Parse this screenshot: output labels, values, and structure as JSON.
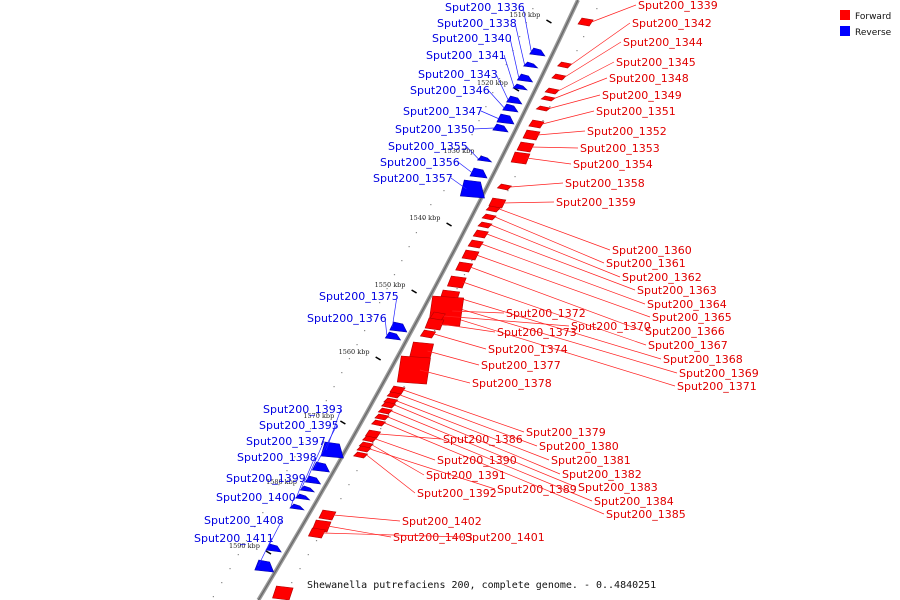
{
  "caption": "Shewanella putrefaciens 200, complete genome. - 0..4840251",
  "legend": [
    {
      "label": "Forward",
      "color": "#ff0000"
    },
    {
      "label": "Reverse",
      "color": "#0000ff"
    }
  ],
  "ticks": [
    "1510 kbp",
    "1520 kbp",
    "1530 kbp",
    "1540 kbp",
    "1550 kbp",
    "1560 kbp",
    "1570 kbp",
    "1580 kbp",
    "1590 kbp"
  ],
  "forward_genes": [
    "Sput200_1339",
    "Sput200_1342",
    "Sput200_1344",
    "Sput200_1345",
    "Sput200_1348",
    "Sput200_1349",
    "Sput200_1351",
    "Sput200_1352",
    "Sput200_1353",
    "Sput200_1354",
    "Sput200_1358",
    "Sput200_1359",
    "Sput200_1360",
    "Sput200_1361",
    "Sput200_1362",
    "Sput200_1363",
    "Sput200_1364",
    "Sput200_1365",
    "Sput200_1366",
    "Sput200_1367",
    "Sput200_1368",
    "Sput200_1369",
    "Sput200_1371",
    "Sput200_1372",
    "Sput200_1373",
    "Sput200_1370",
    "Sput200_1374",
    "Sput200_1377",
    "Sput200_1378",
    "Sput200_1379",
    "Sput200_1380",
    "Sput200_1381",
    "Sput200_1382",
    "Sput200_1383",
    "Sput200_1384",
    "Sput200_1385",
    "Sput200_1386",
    "Sput200_1390",
    "Sput200_1391",
    "Sput200_1389",
    "Sput200_1392",
    "Sput200_1402",
    "Sput200_1403",
    "Sput200_1401"
  ],
  "reverse_genes": [
    "Sput200_1336",
    "Sput200_1338",
    "Sput200_1340",
    "Sput200_1341",
    "Sput200_1343",
    "Sput200_1346",
    "Sput200_1347",
    "Sput200_1350",
    "Sput200_1355",
    "Sput200_1356",
    "Sput200_1357",
    "Sput200_1375",
    "Sput200_1376",
    "Sput200_1393",
    "Sput200_1395",
    "Sput200_1397",
    "Sput200_1398",
    "Sput200_1399",
    "Sput200_1400",
    "Sput200_1408",
    "Sput200_1411"
  ]
}
